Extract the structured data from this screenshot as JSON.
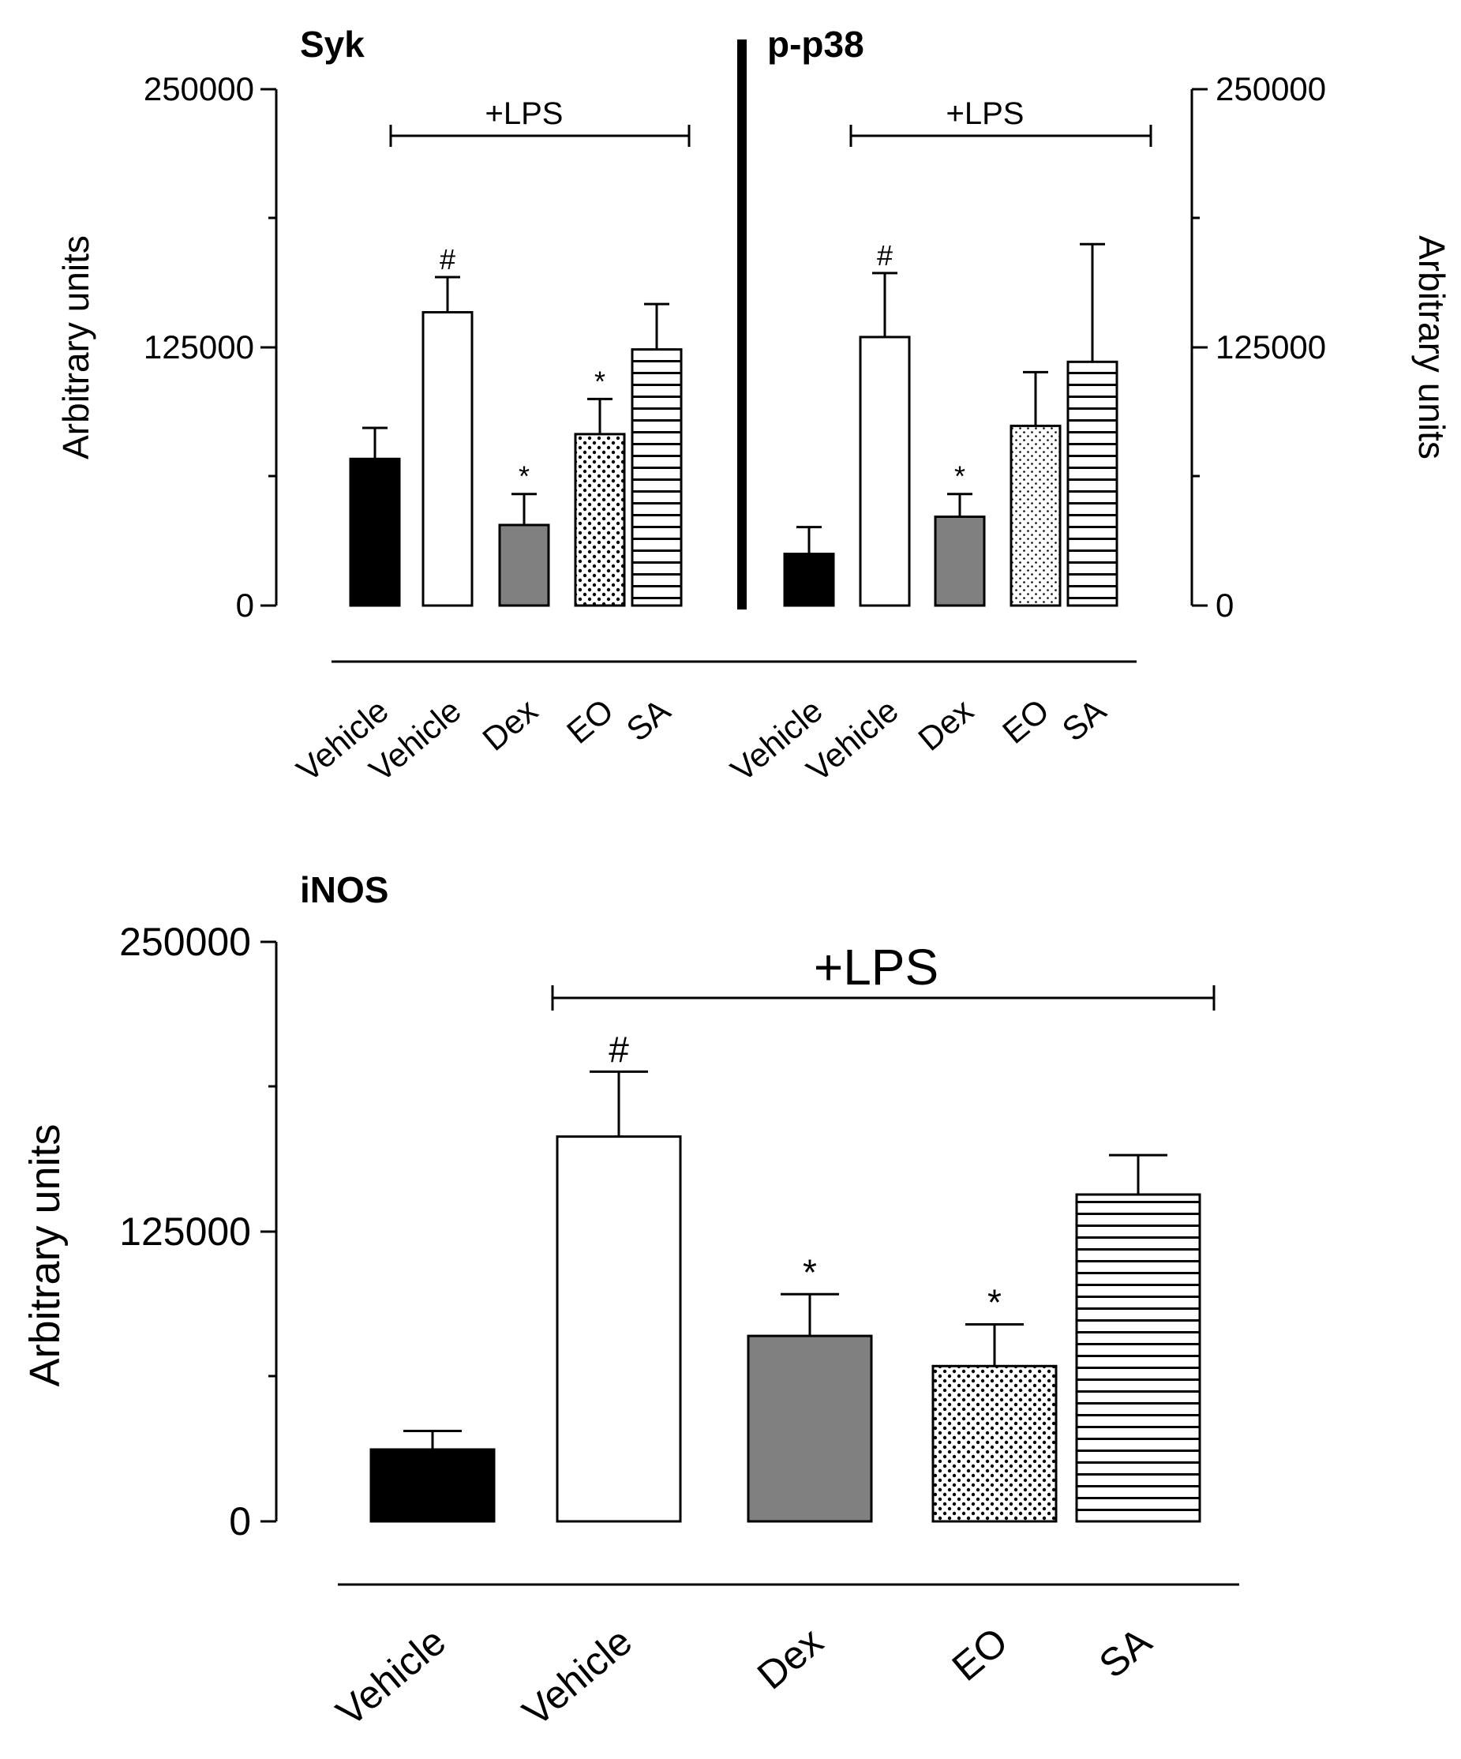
{
  "chart_data": [
    {
      "type": "bar",
      "title": "Syk",
      "ylabel": "Arbitrary units",
      "ylim": [
        0,
        250000
      ],
      "yticks": [
        0,
        125000,
        250000
      ],
      "ytick_labels": [
        "0",
        "125000",
        "250000"
      ],
      "categories": [
        "Vehicle",
        "Vehicle",
        "Dex",
        "EO",
        "SA"
      ],
      "patterns": [
        "solid-black",
        "white",
        "solid-gray",
        "dotted",
        "horizontal-stripes"
      ],
      "values": [
        71000,
        142000,
        39000,
        83000,
        124000
      ],
      "errors": [
        15000,
        17000,
        15000,
        17000,
        22000
      ],
      "annotations": [
        "",
        "#",
        "*",
        "*",
        ""
      ],
      "bracket_label": "+LPS"
    },
    {
      "type": "bar",
      "title": "p-p38",
      "ylabel": "Arbitrary units",
      "ylim": [
        0,
        250000
      ],
      "yticks": [
        0,
        125000,
        250000
      ],
      "ytick_labels": [
        "0",
        "125000",
        "250000"
      ],
      "categories": [
        "Vehicle",
        "Vehicle",
        "Dex",
        "EO",
        "SA"
      ],
      "patterns": [
        "solid-black",
        "white",
        "solid-gray",
        "fine-dotted",
        "horizontal-stripes"
      ],
      "values": [
        25000,
        130000,
        43000,
        87000,
        118000
      ],
      "errors": [
        13000,
        31000,
        11000,
        26000,
        57000
      ],
      "annotations": [
        "",
        "#",
        "*",
        "",
        ""
      ],
      "bracket_label": "+LPS"
    },
    {
      "type": "bar",
      "title": "iNOS",
      "ylabel": "Arbitrary units",
      "ylim": [
        0,
        250000
      ],
      "yticks": [
        0,
        125000,
        250000
      ],
      "ytick_labels": [
        "0",
        "125000",
        "250000"
      ],
      "categories": [
        "Vehicle",
        "Vehicle",
        "Dex",
        "EO",
        "SA"
      ],
      "patterns": [
        "solid-black",
        "white",
        "solid-gray",
        "dotted",
        "horizontal-stripes"
      ],
      "values": [
        31000,
        166000,
        80000,
        67000,
        141000
      ],
      "errors": [
        8000,
        28000,
        18000,
        18000,
        17000
      ],
      "annotations": [
        "",
        "#",
        "*",
        "*",
        ""
      ],
      "bracket_label": "+LPS"
    }
  ]
}
